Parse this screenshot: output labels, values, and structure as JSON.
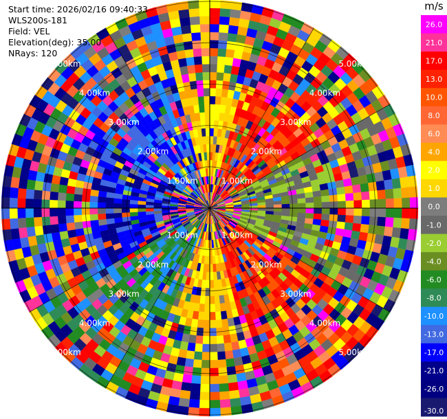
{
  "header": {
    "start_time": "Start time: 2026/02/16 09:40:33",
    "instrument": "WLS200s-181",
    "field": "Field: VEL",
    "elevation": "Elevation(deg): 35.00",
    "nrays": "NRays: 120"
  },
  "chart_data": {
    "type": "heatmap",
    "projection": "polar-ppi",
    "field": "VEL",
    "n_rays": 120,
    "max_range_km": 5.0,
    "range_labels": [
      "1.00km",
      "2.00km",
      "3.00km",
      "4.00km",
      "5.00km"
    ],
    "range_rings_km": [
      1,
      2,
      3,
      4,
      5
    ],
    "spokes_deg": [
      0,
      30,
      60,
      90,
      120,
      150,
      180,
      210,
      240,
      270,
      300,
      330
    ],
    "colorbar": {
      "unit": "m/s",
      "tick_labels": [
        "26.0",
        "21.0",
        "17.0",
        "13.0",
        "10.0",
        "8.0",
        "6.0",
        "4.0",
        "2.0",
        "1.0",
        "0.0",
        "-1.0",
        "-2.0",
        "-4.0",
        "-6.0",
        "-8.0",
        "-10.0",
        "-13.0",
        "-17.0",
        "-21.0",
        "-26.0",
        "-30.0"
      ],
      "colors": [
        "#ff00ff",
        "#ff3399",
        "#ff0000",
        "#ff2200",
        "#ff5500",
        "#ff6633",
        "#ff8c55",
        "#ffa500",
        "#ffff00",
        "#ffd700",
        "#7d7d7d",
        "#696969",
        "#9acd32",
        "#6b8e23",
        "#228b22",
        "#2e8b57",
        "#1e90ff",
        "#4169e1",
        "#0000ff",
        "#00008b",
        "#000080",
        "#191970"
      ]
    },
    "dominant_patterns": [
      {
        "azimuth_deg": 0,
        "description_color": "#ffff00",
        "value_range": [
          2,
          6
        ]
      },
      {
        "azimuth_deg": 30,
        "description_color": "#ff3300",
        "value_range": [
          10,
          21
        ]
      },
      {
        "azimuth_deg": 150,
        "description_color": "#ff3300",
        "value_range": [
          10,
          21
        ]
      },
      {
        "azimuth_deg": 180,
        "description_color": "#ffff00",
        "value_range": [
          2,
          6
        ]
      },
      {
        "azimuth_deg": 270,
        "description_color": "#0000ff",
        "value_range": [
          -21,
          -13
        ]
      }
    ]
  }
}
